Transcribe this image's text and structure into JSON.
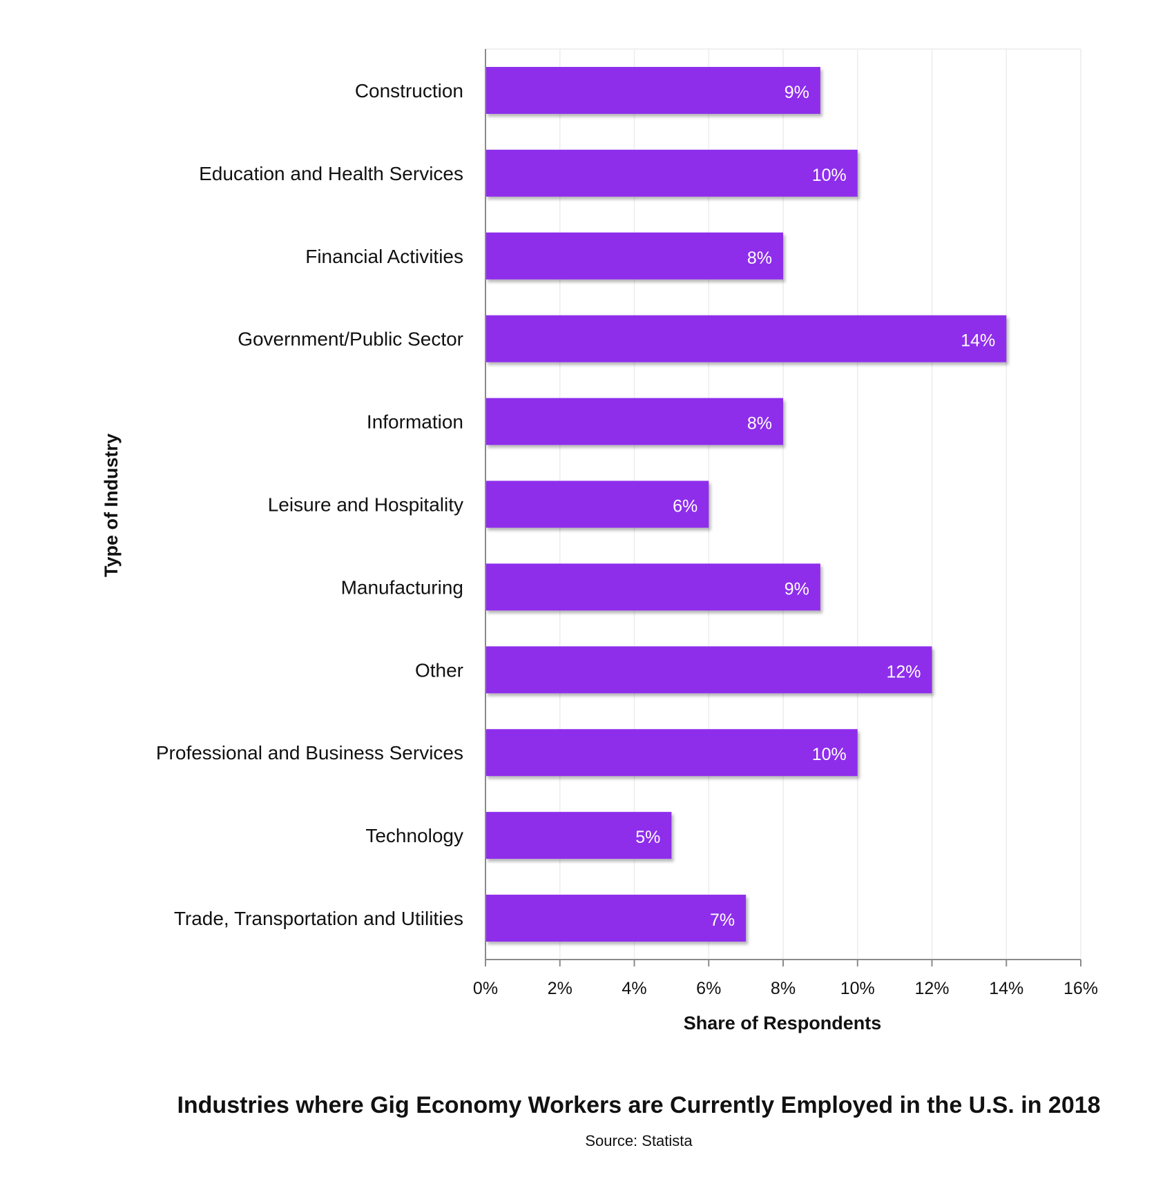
{
  "chart_data": {
    "type": "bar",
    "orientation": "horizontal",
    "title": "Industries where Gig Economy Workers are Currently Employed in the U.S. in 2018",
    "source": "Source: Statista",
    "xlabel": "Share of Respondents",
    "ylabel": "Type of Industry",
    "categories": [
      "Construction",
      "Education and Health Services",
      "Financial Activities",
      "Government/Public Sector",
      "Information",
      "Leisure and Hospitality",
      "Manufacturing",
      "Other",
      "Professional and Business Services",
      "Technology",
      "Trade, Transportation and Utilities"
    ],
    "values": [
      9,
      10,
      8,
      14,
      8,
      6,
      9,
      12,
      10,
      5,
      7
    ],
    "value_labels": [
      "9%",
      "10%",
      "8%",
      "14%",
      "8%",
      "6%",
      "9%",
      "12%",
      "10%",
      "5%",
      "7%"
    ],
    "xlim": [
      0,
      16
    ],
    "x_ticks": [
      0,
      2,
      4,
      6,
      8,
      10,
      12,
      14,
      16
    ],
    "x_tick_labels": [
      "0%",
      "2%",
      "4%",
      "6%",
      "8%",
      "10%",
      "12%",
      "14%",
      "16%"
    ],
    "grid": true,
    "legend": "none",
    "bar_color": "#8E2DEB"
  }
}
